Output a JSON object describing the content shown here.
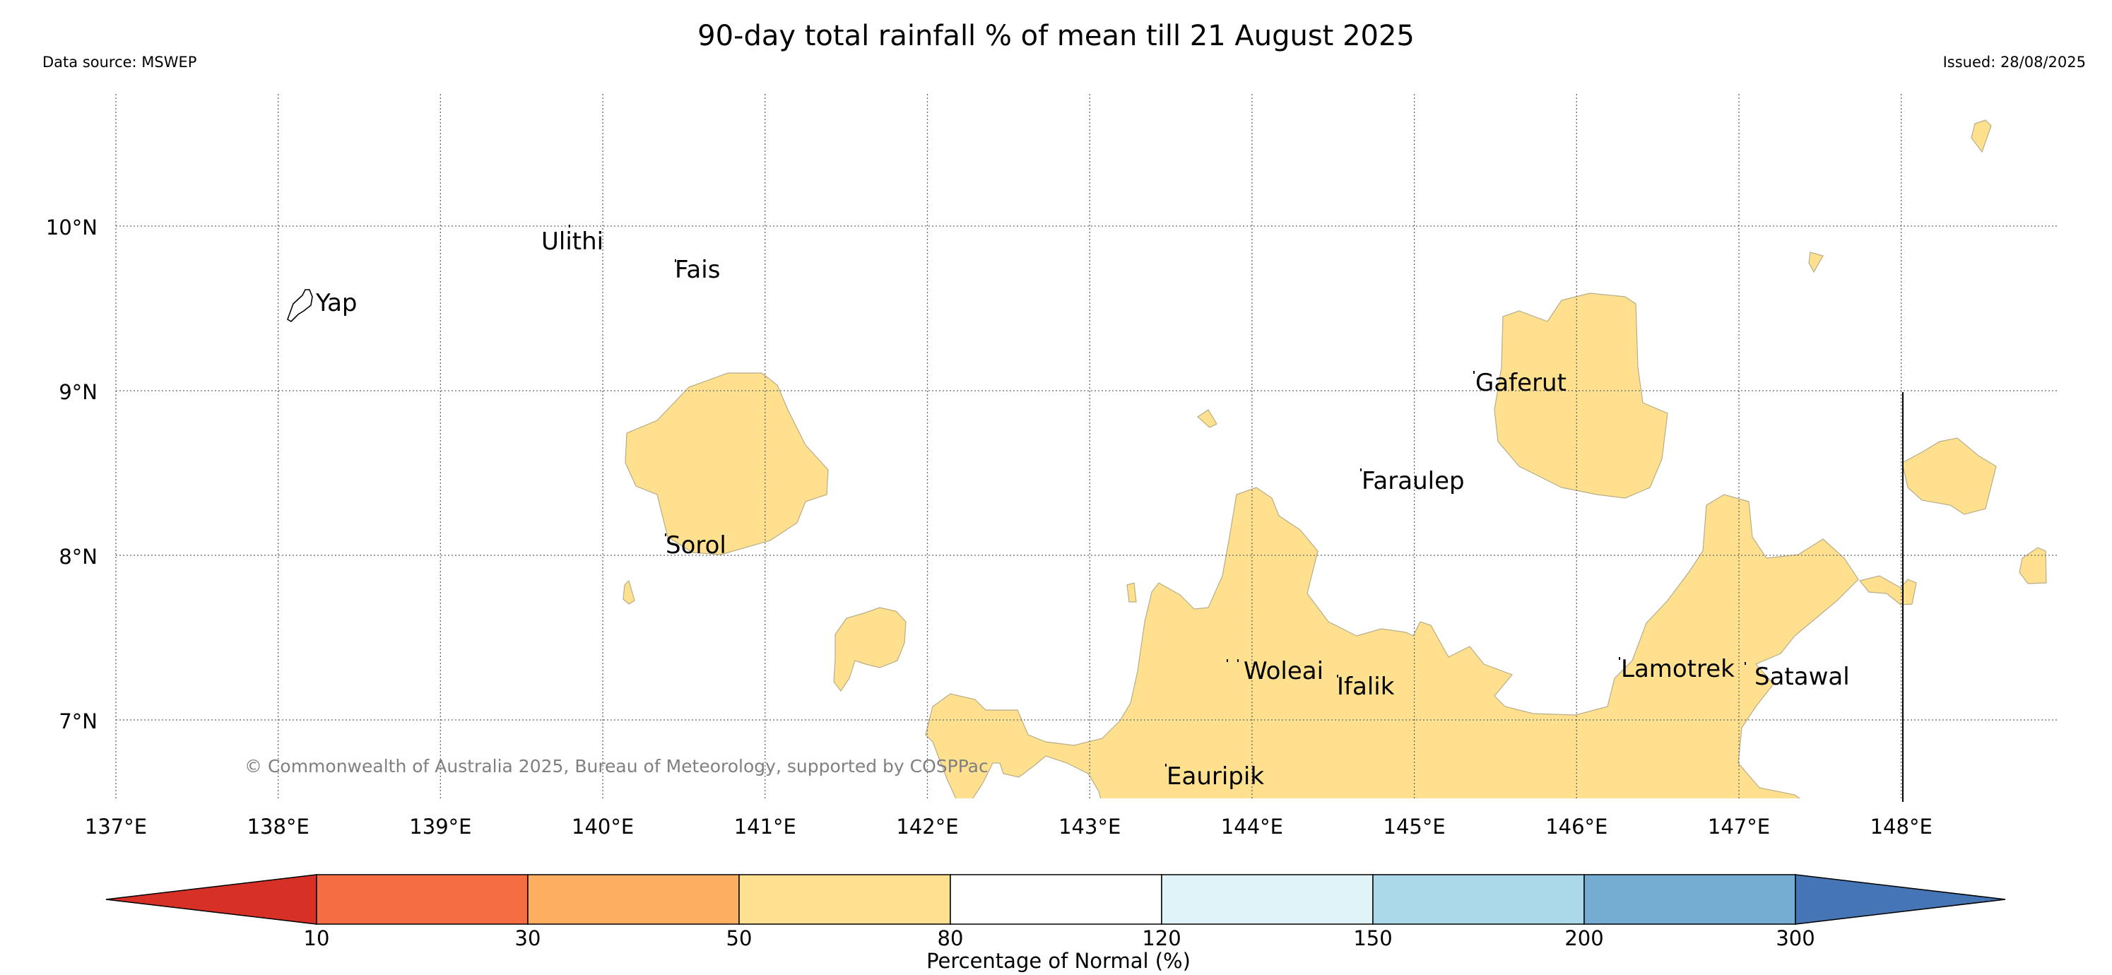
{
  "header": {
    "title": "90-day total rainfall % of mean till 21 August 2025",
    "data_source": "Data source: MSWEP",
    "issued": "Issued: 28/08/2025"
  },
  "map": {
    "lat_labels": [
      "10°N",
      "9°N",
      "8°N",
      "7°N"
    ],
    "lon_labels": [
      "137°E",
      "138°E",
      "139°E",
      "140°E",
      "141°E",
      "142°E",
      "143°E",
      "144°E",
      "145°E",
      "146°E",
      "147°E",
      "148°E"
    ],
    "places": [
      "Ulithi",
      "Fais",
      "Yap",
      "Gaferut",
      "Faraulep",
      "Sorol",
      "Woleai",
      "Ifalik",
      "Lamotrek",
      "Satawal",
      "Eauripik"
    ],
    "copyright": "© Commonwealth of Australia 2025, Bureau of Meteorology, supported by COSPPac",
    "rain_fill_color": "#ffe08f",
    "gridline_style": "dotted"
  },
  "colorbar": {
    "label": "Percentage of Normal (%)",
    "ticks": [
      "10",
      "30",
      "50",
      "80",
      "120",
      "150",
      "200",
      "300"
    ],
    "colors": [
      "#d73027",
      "#f46d43",
      "#fdae61",
      "#fee090",
      "#ffffff",
      "#e0f3f8",
      "#abd9e9",
      "#74add1",
      "#4575b4"
    ]
  }
}
